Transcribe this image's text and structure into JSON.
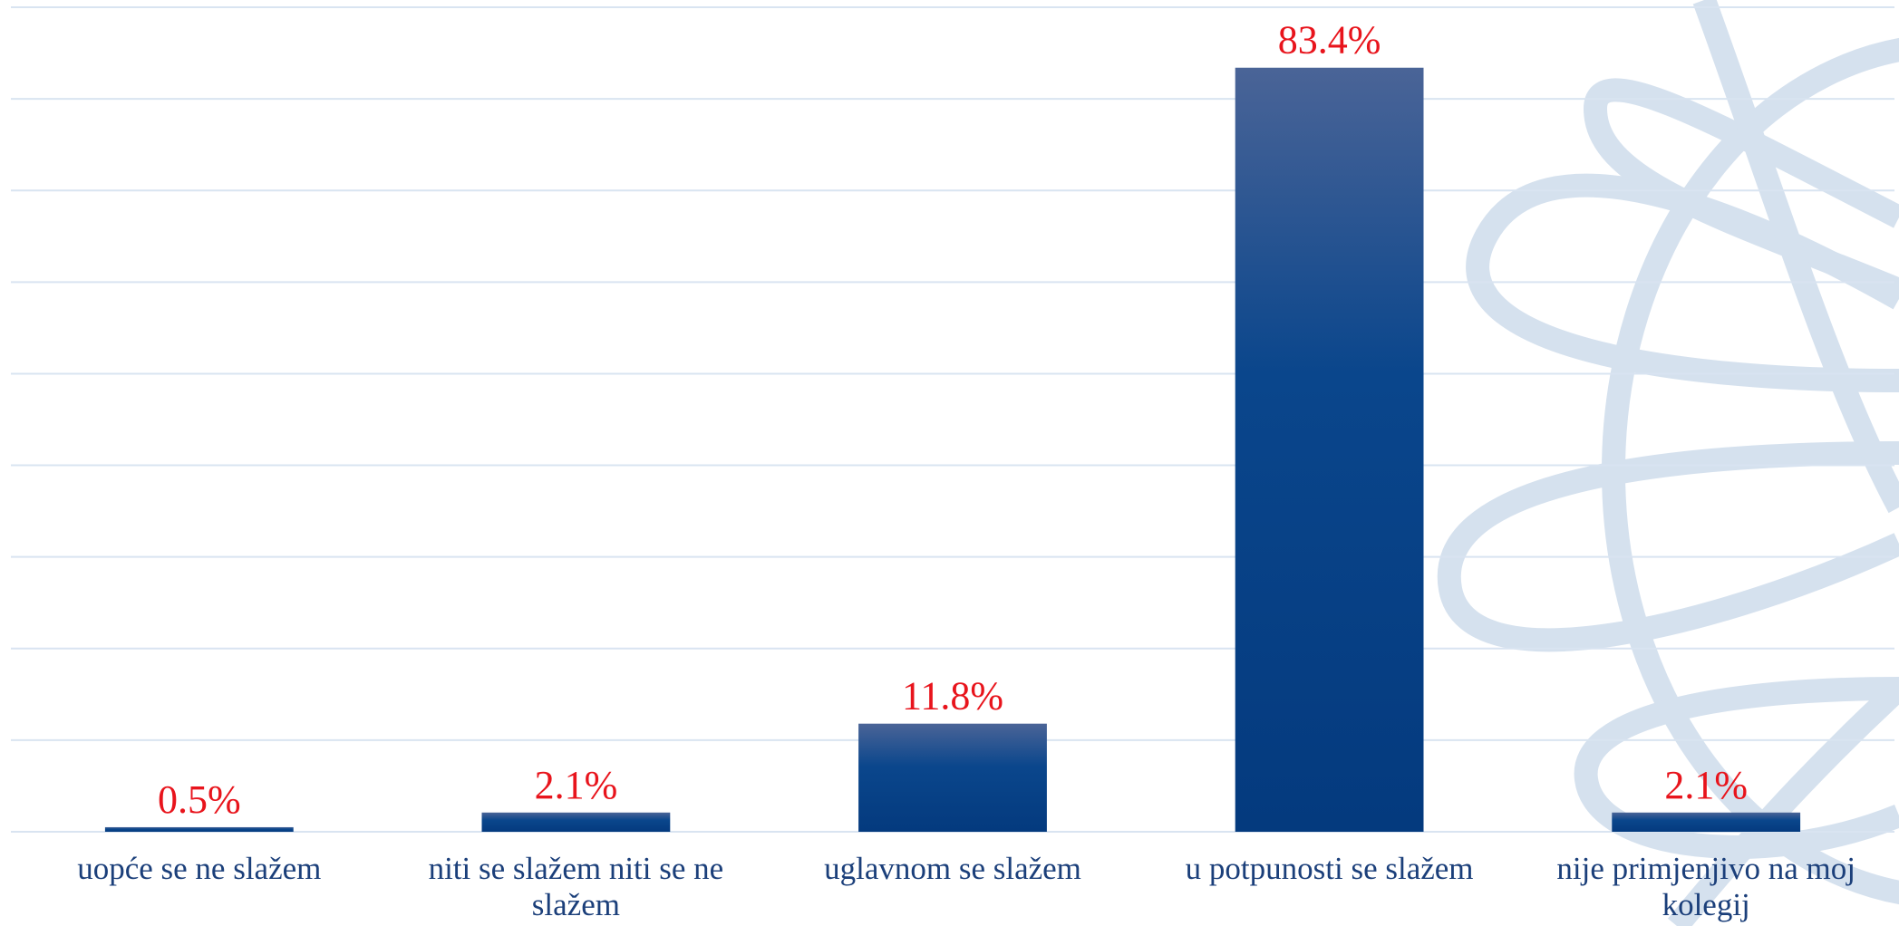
{
  "chart_data": {
    "type": "bar",
    "categories": [
      "uopće se ne slažem",
      "niti se slažem niti se ne slažem",
      "uglavnom se slažem",
      "u potpunosti se slažem",
      "nije primjenjivo na moj kolegij"
    ],
    "values": [
      0.5,
      2.1,
      11.8,
      83.4,
      2.1
    ],
    "value_labels": [
      "0.5%",
      "2.1%",
      "11.8%",
      "83.4%",
      "2.1%"
    ],
    "color": "#053a80",
    "ylim": [
      0,
      90
    ],
    "yticks": [
      0,
      10,
      20,
      30,
      40,
      50,
      60,
      70,
      80,
      90
    ],
    "grid": true
  }
}
